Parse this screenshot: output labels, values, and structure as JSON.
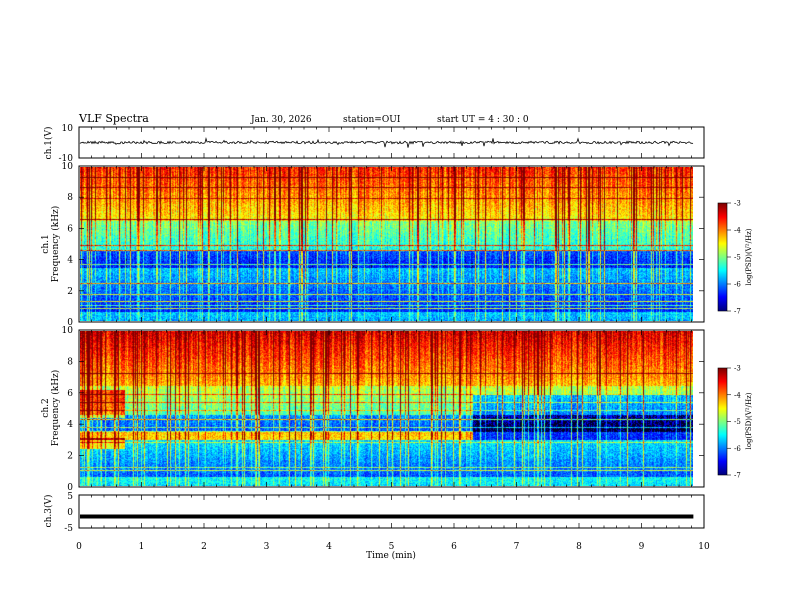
{
  "header": {
    "title": "VLF Spectra",
    "date": "Jan. 30, 2026",
    "station": "station=OUI",
    "start_ut": "start  UT =   4 : 30 : 0"
  },
  "chart_data": {
    "type": "heatmap",
    "title": "VLF Spectra",
    "xlabel": "Time  (min)",
    "xlim": [
      0,
      10
    ],
    "x_ticks": [
      "0",
      "1",
      "2",
      "3",
      "4",
      "5",
      "6",
      "7",
      "8",
      "9",
      "10"
    ],
    "panels": [
      {
        "id": "ch1-waveform",
        "type": "line",
        "ylabel": "ch.1(V)",
        "ylim": [
          -10,
          10
        ],
        "y_ticks": [
          "10",
          "-10"
        ],
        "note": "noisy waveform centered near 0 V, amplitude about ±1 V with spikes up to ±3 V"
      },
      {
        "id": "ch1-spectrogram",
        "type": "heatmap",
        "ylabel_line1": "ch.1",
        "ylabel_line2": "Frequency  (kHz)",
        "ylim": [
          0,
          10
        ],
        "y_ticks": [
          "0",
          "2",
          "4",
          "6",
          "8",
          "10"
        ],
        "colorbar": {
          "label": "log(PSD)(V²/Hz)",
          "range": [
            -7,
            -3
          ],
          "ticks": [
            "-3",
            "-4",
            "-5",
            "-6",
            "-7"
          ]
        }
      },
      {
        "id": "ch2-spectrogram",
        "type": "heatmap",
        "ylabel_line1": "ch.2",
        "ylabel_line2": "Frequency  (kHz)",
        "ylim": [
          0,
          10
        ],
        "y_ticks": [
          "0",
          "2",
          "4",
          "6",
          "8",
          "10"
        ],
        "colorbar": {
          "label": "log(PSD)(V²/Hz)",
          "range": [
            -7,
            -3
          ],
          "ticks": [
            "-3",
            "-4",
            "-5",
            "-6",
            "-7"
          ]
        }
      },
      {
        "id": "ch3-line",
        "type": "line",
        "ylabel": "ch.3(V)",
        "ylim": [
          -5,
          5
        ],
        "y_ticks": [
          "5",
          "0",
          "-5"
        ],
        "note": "flat thick line at about -1.5 V"
      }
    ],
    "data_end_min": 9.83
  }
}
